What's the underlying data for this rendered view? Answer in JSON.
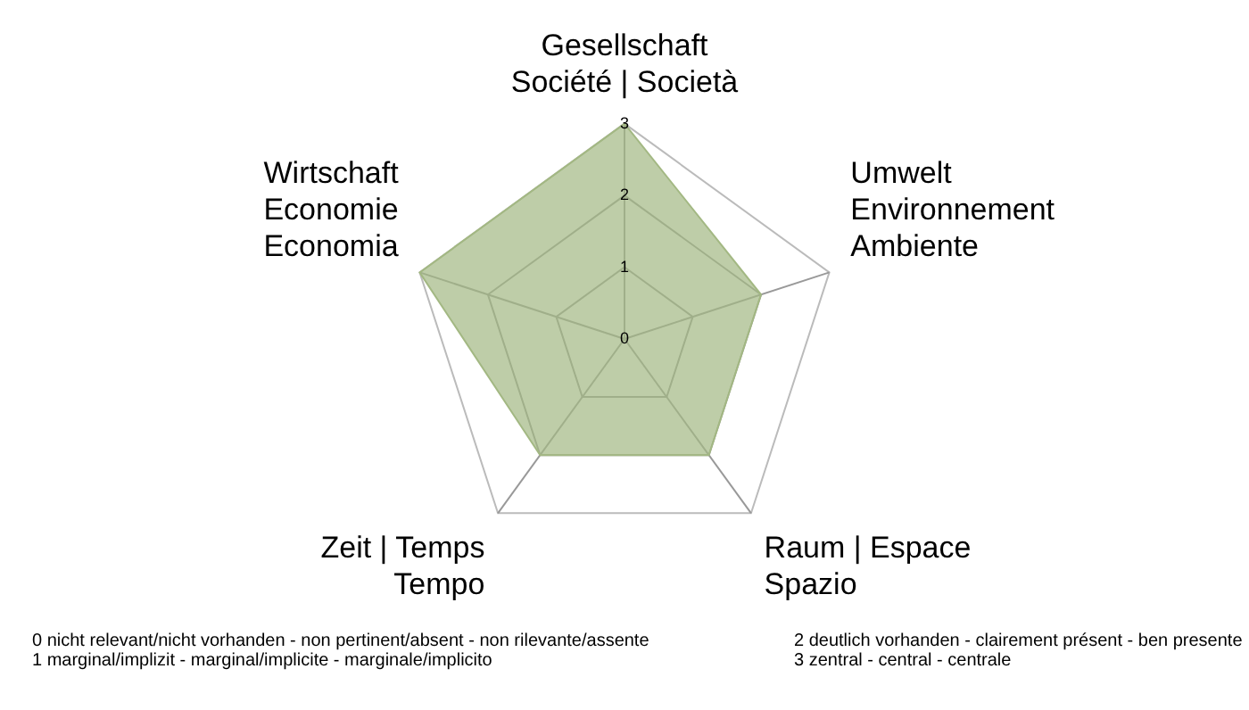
{
  "chart_data": {
    "type": "radar",
    "categories": [
      "Gesellschaft\nSociété | Società",
      "Umwelt\nEnvironnement\nAmbiente",
      "Raum | Espace\nSpazio",
      "Zeit | Temps\nTempo",
      "Wirtschaft\nEconomie\nEconomia"
    ],
    "series": [
      {
        "color": "#a3b883",
        "values": [
          3,
          2,
          2,
          2,
          3
        ]
      }
    ],
    "ylim": [
      0,
      3
    ],
    "yticks": [
      0,
      1,
      2,
      3
    ],
    "grid": true,
    "legend": false,
    "marker": "none",
    "annotations": [
      "0 nicht relevant/nicht vorhanden - non pertinent/absent - non rilevante/assente",
      "1 marginal/implizit - marginal/implicite - marginale/implicito",
      "2 deutlich vorhanden - clairement présent - ben presente",
      "3 zentral - central - centrale"
    ]
  }
}
